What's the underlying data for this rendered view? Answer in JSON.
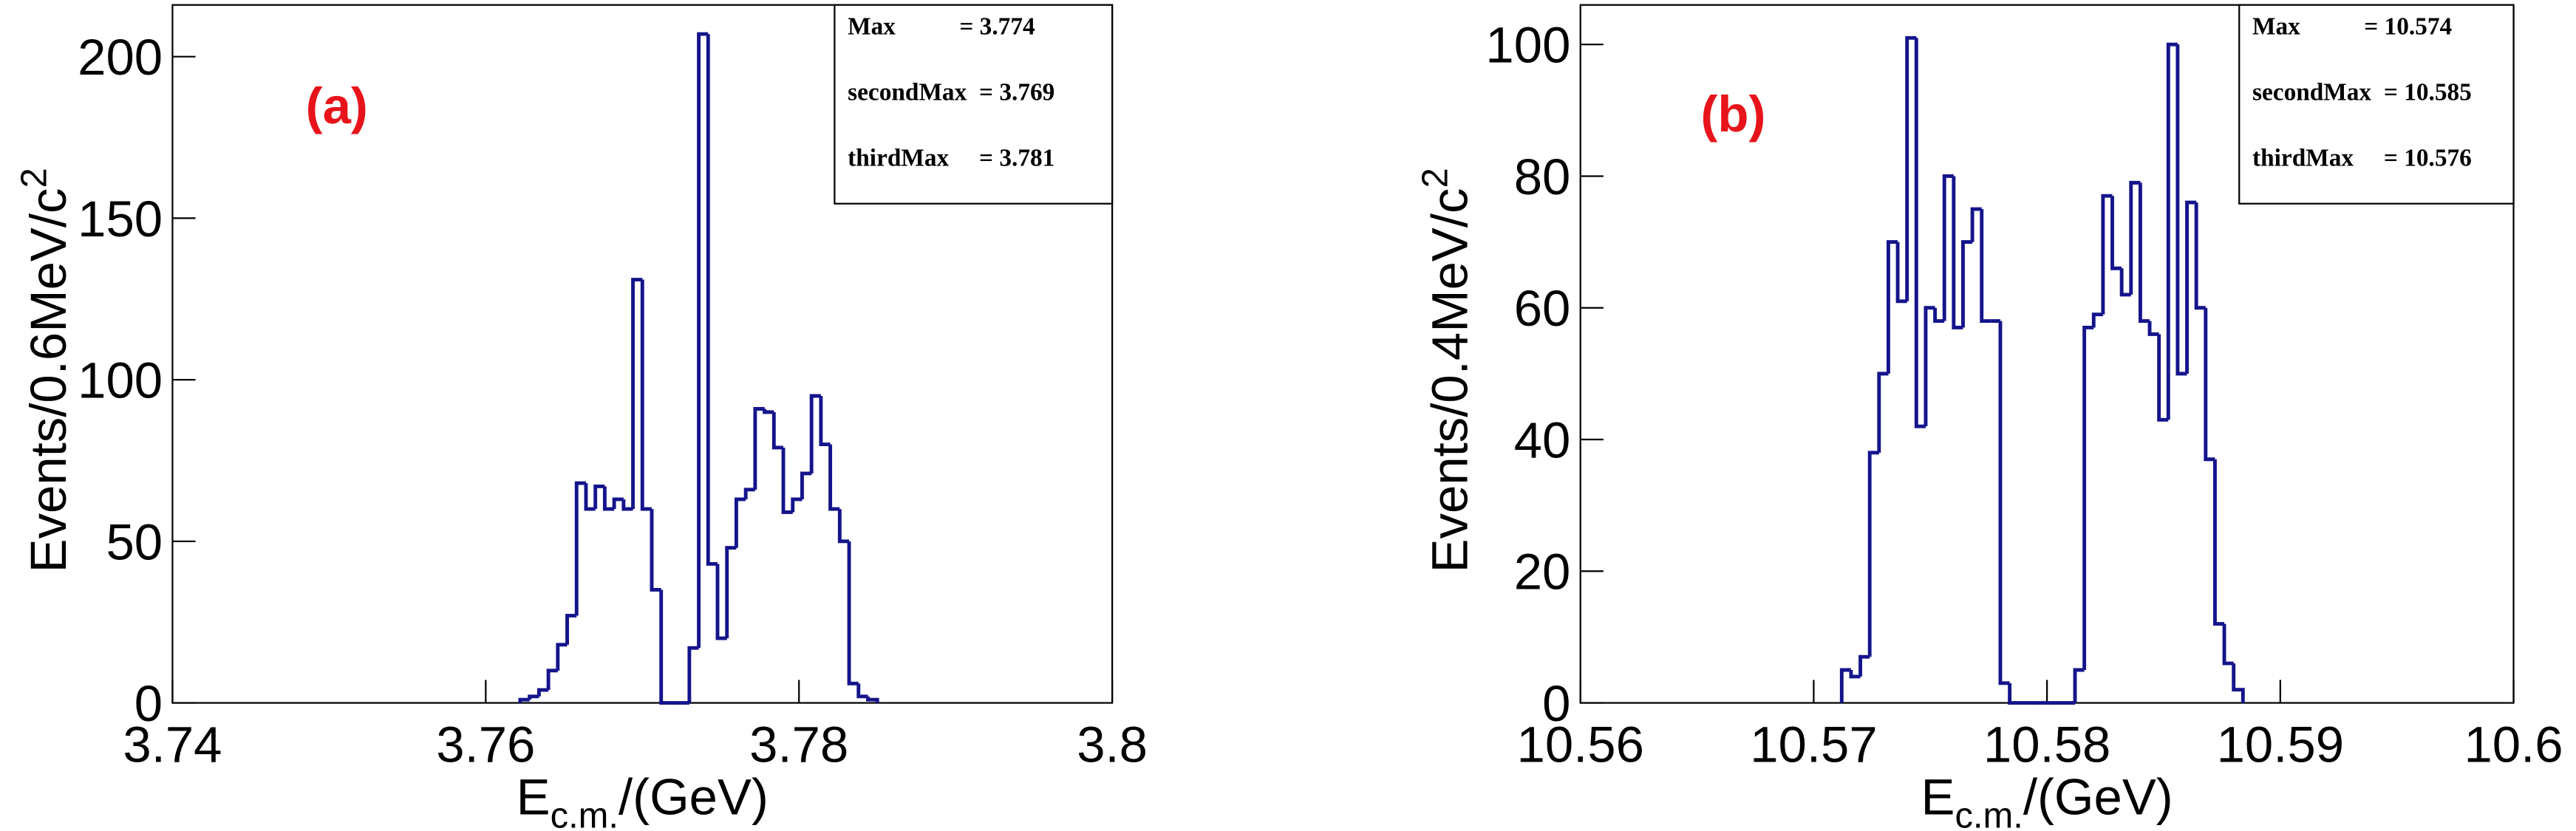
{
  "chart_data": [
    {
      "type": "histogram",
      "title": "(a)",
      "x_label": {
        "text": "E",
        "sub": "c.m.",
        "suffix": "/(GeV)"
      },
      "y_label": {
        "text": "Events/0.6MeV/c",
        "sup": "2"
      },
      "bins": [
        3.7622,
        3.7628,
        3.7634,
        3.764,
        3.7646,
        3.7652,
        3.7658,
        3.7664,
        3.767,
        3.7676,
        3.7682,
        3.7688,
        3.7694,
        3.77,
        3.7706,
        3.7712,
        3.7718,
        3.7724,
        3.773,
        3.7736,
        3.7742,
        3.7748,
        3.7754,
        3.776,
        3.7766,
        3.7772,
        3.7778,
        3.7784,
        3.779,
        3.7796,
        3.7802,
        3.7808,
        3.7814,
        3.782,
        3.7826,
        3.7832,
        3.7838,
        3.7844,
        3.785
      ],
      "values": [
        1,
        2,
        4,
        10,
        18,
        27,
        68,
        60,
        67,
        60,
        63,
        60,
        131,
        60,
        35,
        0,
        0,
        0,
        17,
        207,
        43,
        20,
        48,
        63,
        66,
        91,
        90,
        79,
        59,
        63,
        71,
        95,
        80,
        60,
        50,
        6,
        2,
        1
      ],
      "color": "#14148c",
      "xlim": [
        3.74,
        3.8
      ],
      "ylim": [
        0,
        216
      ],
      "xticks": [
        3.74,
        3.76,
        3.78,
        3.8
      ],
      "yticks": [
        0,
        50,
        100,
        150,
        200
      ],
      "stats": [
        {
          "label": "Max",
          "value": "= 3.774"
        },
        {
          "label": "secondMax",
          "value": "= 3.769"
        },
        {
          "label": "thirdMax",
          "value": "= 3.781"
        }
      ]
    },
    {
      "type": "histogram",
      "title": "(b)",
      "x_label": {
        "text": "E",
        "sub": "c.m.",
        "suffix": "/(GeV)"
      },
      "y_label": {
        "text": "Events/0.4MeV/c",
        "sup": "2"
      },
      "bins": [
        10.5712,
        10.5716,
        10.572,
        10.5724,
        10.5728,
        10.5732,
        10.5736,
        10.574,
        10.5744,
        10.5748,
        10.5752,
        10.5756,
        10.576,
        10.5764,
        10.5768,
        10.5772,
        10.5776,
        10.578,
        10.5784,
        10.5788,
        10.5792,
        10.5796,
        10.58,
        10.5804,
        10.5808,
        10.5812,
        10.5816,
        10.582,
        10.5824,
        10.5828,
        10.5832,
        10.5836,
        10.584,
        10.5844,
        10.5848,
        10.5852,
        10.5856,
        10.586,
        10.5864,
        10.5868,
        10.5872,
        10.5876,
        10.588,
        10.5884
      ],
      "values": [
        5,
        4,
        7,
        38,
        50,
        70,
        61,
        101,
        42,
        60,
        58,
        80,
        57,
        70,
        75,
        58,
        58,
        3,
        0,
        0,
        0,
        0,
        0,
        0,
        0,
        5,
        57,
        59,
        77,
        66,
        62,
        79,
        58,
        56,
        43,
        100,
        50,
        76,
        60,
        37,
        12,
        6,
        2
      ],
      "color": "#14148c",
      "xlim": [
        10.56,
        10.6
      ],
      "ylim": [
        0,
        106
      ],
      "xticks": [
        10.56,
        10.57,
        10.58,
        10.59,
        10.6
      ],
      "yticks": [
        0,
        20,
        40,
        60,
        80,
        100
      ],
      "stats": [
        {
          "label": "Max",
          "value": "= 10.574"
        },
        {
          "label": "secondMax",
          "value": "= 10.585"
        },
        {
          "label": "thirdMax",
          "value": "= 10.576"
        }
      ]
    }
  ]
}
